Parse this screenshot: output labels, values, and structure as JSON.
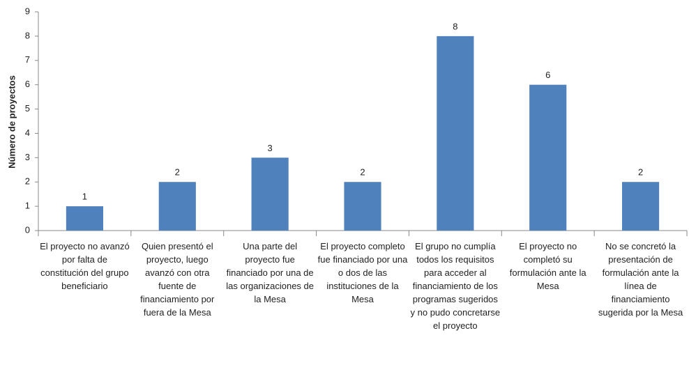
{
  "chart_data": {
    "type": "bar",
    "y_label": "Número de proyectos",
    "categories": [
      "El proyecto no avanzó por falta de constitución del grupo beneficiario",
      "Quien presentó el proyecto, luego avanzó con otra fuente de financiamiento por fuera de la Mesa",
      "Una parte del proyecto fue financiado por una de las organizaciones de la Mesa",
      "El proyecto completo fue financiado por una o dos de las instituciones de la Mesa",
      "El grupo no cumplía todos los requisitos para acceder al financiamiento de los programas sugeridos y no pudo concretarse el proyecto",
      "El proyecto no completó su formulación ante la Mesa",
      "No se concretó la presentación de formulación ante la línea de financiamiento sugerida por la Mesa"
    ],
    "values": [
      1,
      2,
      3,
      2,
      8,
      6,
      2
    ],
    "color": "#4f81bd",
    "ylim": [
      0,
      9
    ],
    "yticks": [
      0,
      1,
      2,
      3,
      4,
      5,
      6,
      7,
      8,
      9
    ],
    "grid": false
  }
}
